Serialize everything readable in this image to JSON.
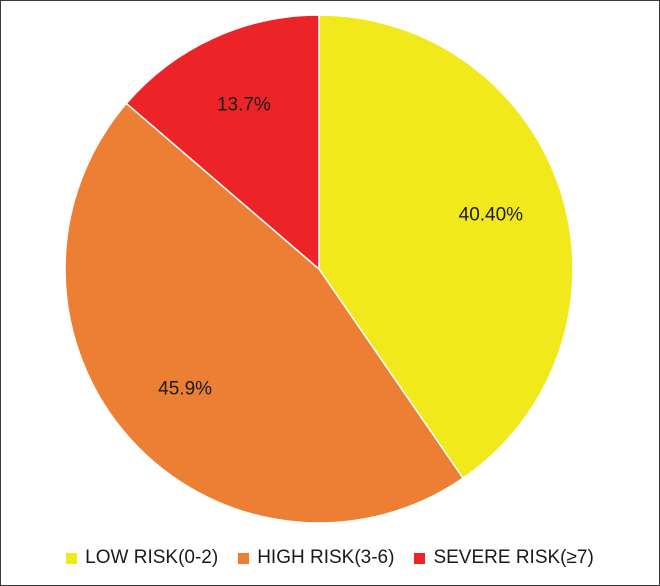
{
  "chart_data": {
    "type": "pie",
    "title": "",
    "slices": [
      {
        "label": "LOW RISK(0-2)",
        "value": 40.4,
        "display": "40.40%",
        "color": "#f1e91c"
      },
      {
        "label": "HIGH RISK(3-6)",
        "value": 45.9,
        "display": "45.9%",
        "color": "#ec7f33"
      },
      {
        "label": "SEVERE RISK(≥7)",
        "value": 13.7,
        "display": "13.7%",
        "color": "#ec2427"
      }
    ],
    "start_angle_deg": 0,
    "direction": "clockwise",
    "legend_position": "bottom"
  }
}
